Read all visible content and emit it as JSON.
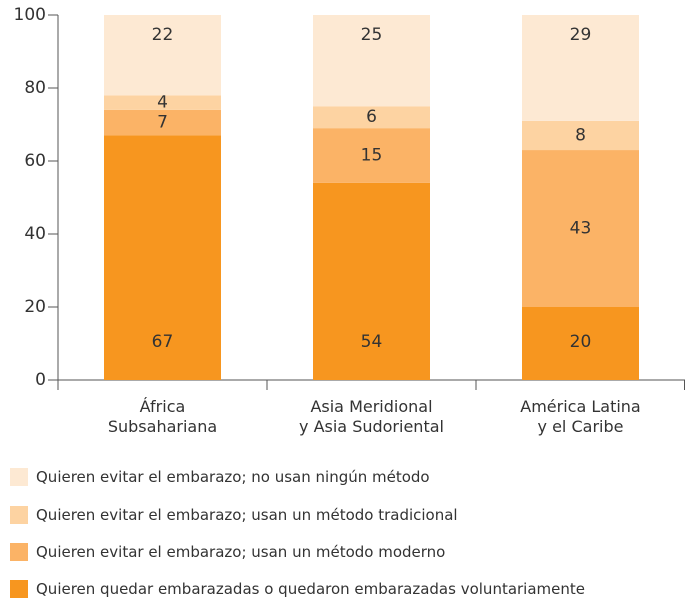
{
  "chart_data": {
    "type": "stacked_bar",
    "categories": [
      "África\nSubsahariana",
      "Asia Meridional\ny Asia Sudoriental",
      "América Latina\ny el Caribe"
    ],
    "series": [
      {
        "name": "Quieren evitar el embarazo; no usan ningún método",
        "color": "#fde9d3",
        "values": [
          22,
          25,
          29
        ]
      },
      {
        "name": "Quieren evitar el embarazo; usan un método tradicional",
        "color": "#fdd3a2",
        "values": [
          4,
          6,
          8
        ]
      },
      {
        "name": "Quieren evitar el embarazo; usan un método moderno",
        "color": "#fbb366",
        "values": [
          7,
          15,
          43
        ]
      },
      {
        "name": "Quieren quedar embarazadas o quedaron embarazadas voluntariamente",
        "color": "#f7961f",
        "values": [
          67,
          54,
          20
        ]
      }
    ],
    "ylim": [
      0,
      100
    ],
    "yticks": [
      0,
      20,
      40,
      60,
      80,
      100
    ]
  }
}
